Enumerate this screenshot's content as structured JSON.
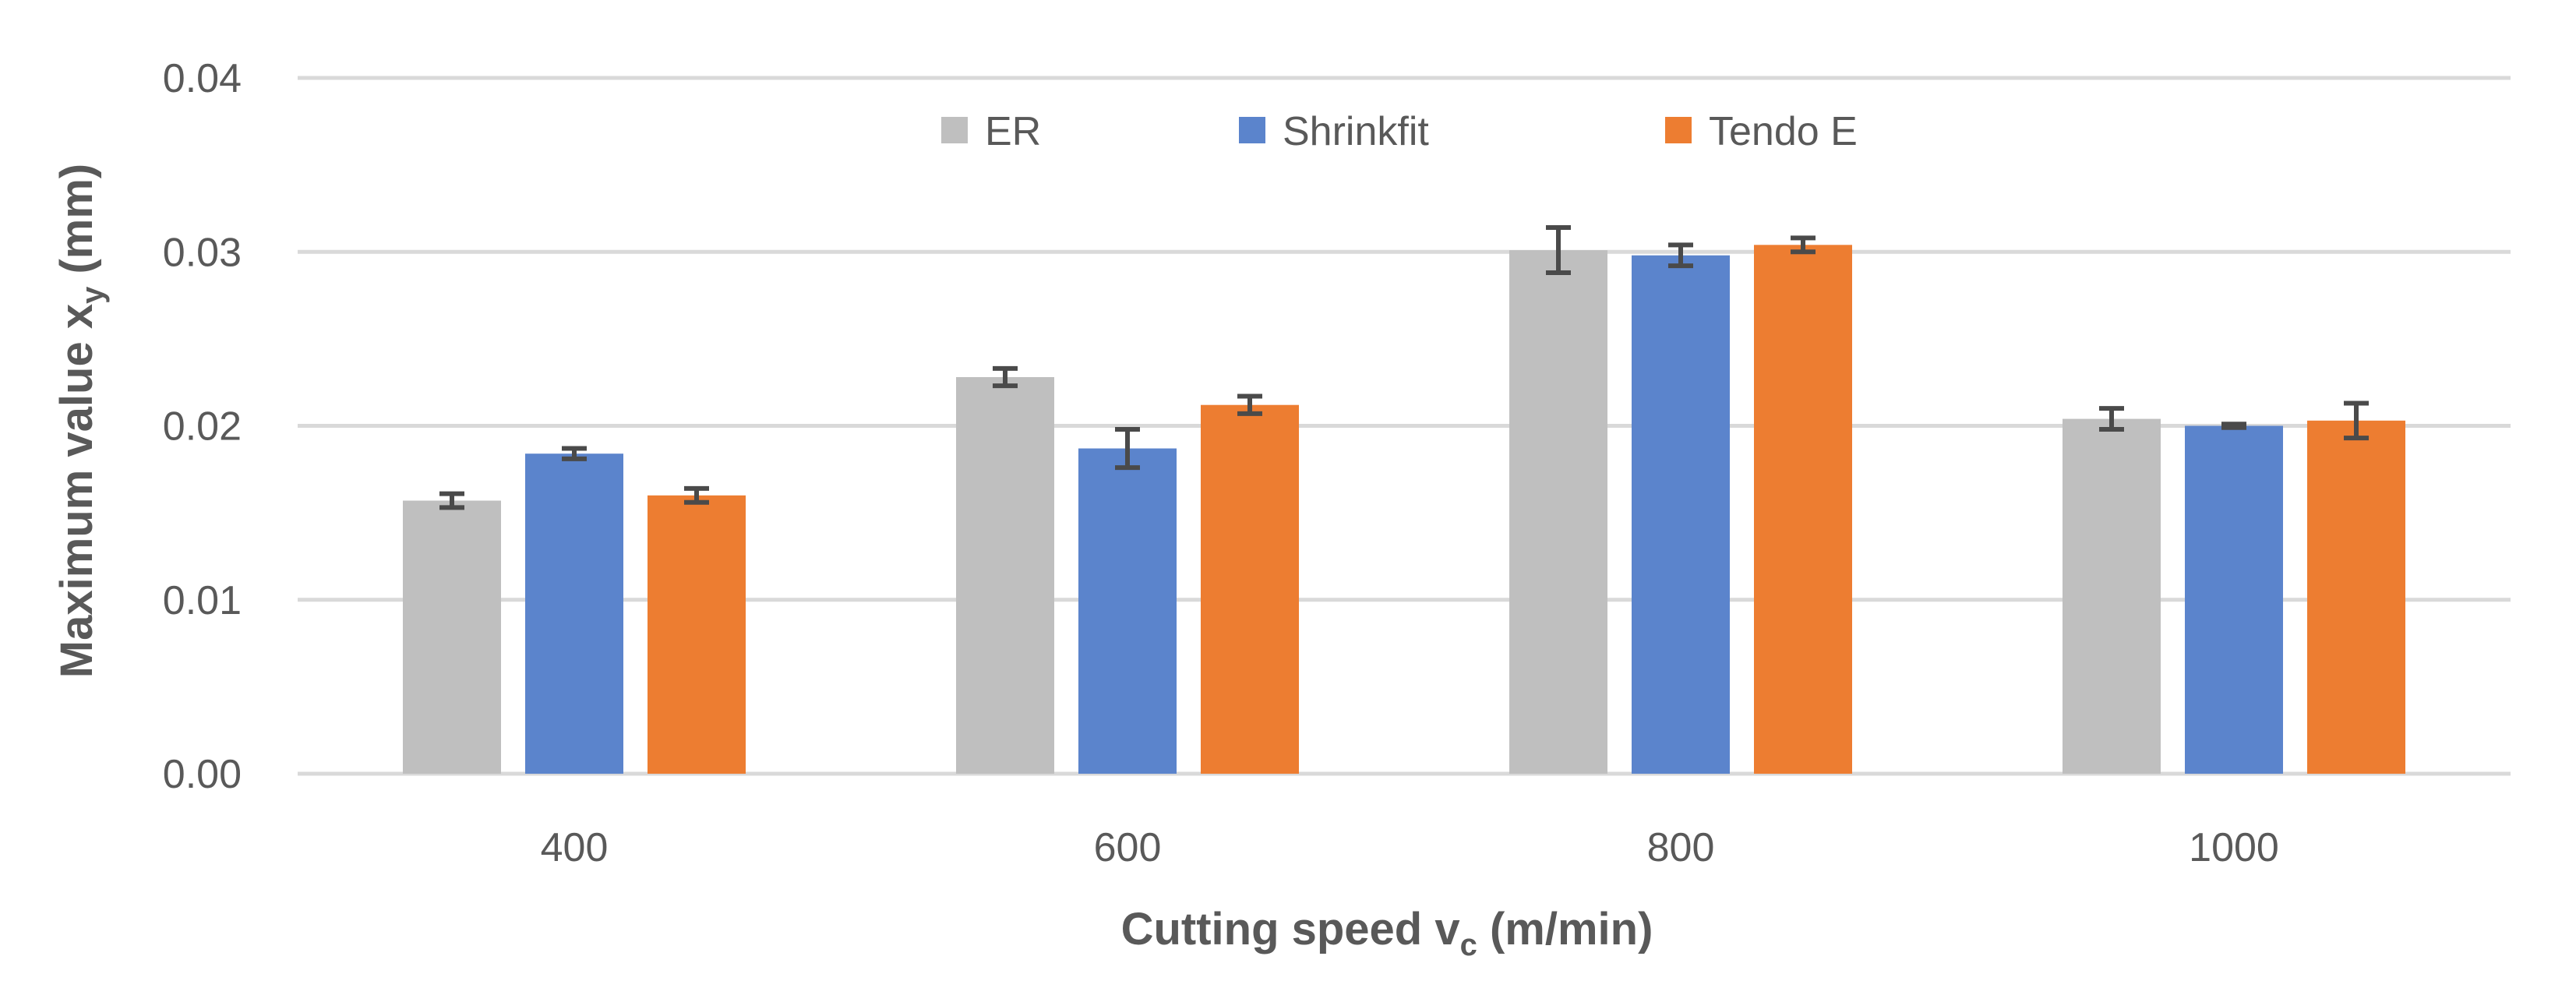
{
  "chart_data": {
    "type": "bar",
    "title": "",
    "xlabel": "Cutting speed v",
    "xlabel_subscript": "c",
    "xlabel_unit": " (m/min)",
    "ylabel": "Maximum value x",
    "ylabel_subscript": "y",
    "ylabel_unit": " (mm)",
    "categories": [
      "400",
      "600",
      "800",
      "1000"
    ],
    "ylim": [
      0,
      0.04
    ],
    "yticks": [
      "0.00",
      "0.01",
      "0.02",
      "0.03",
      "0.04"
    ],
    "grid": true,
    "legend_position": "top-center",
    "series": [
      {
        "name": "ER",
        "color": "#bfbfbf",
        "values": [
          0.0157,
          0.0228,
          0.0301,
          0.0204
        ],
        "errors": [
          0.0004,
          0.0005,
          0.0013,
          0.0006
        ]
      },
      {
        "name": "Shrinkfit",
        "color": "#5b84cc",
        "values": [
          0.0184,
          0.0187,
          0.0298,
          0.02
        ],
        "errors": [
          0.0003,
          0.0011,
          0.0006,
          0.0001
        ]
      },
      {
        "name": "Tendo E",
        "color": "#ed7d31",
        "values": [
          0.016,
          0.0212,
          0.0304,
          0.0203
        ],
        "errors": [
          0.0004,
          0.0005,
          0.0004,
          0.001
        ]
      }
    ]
  }
}
